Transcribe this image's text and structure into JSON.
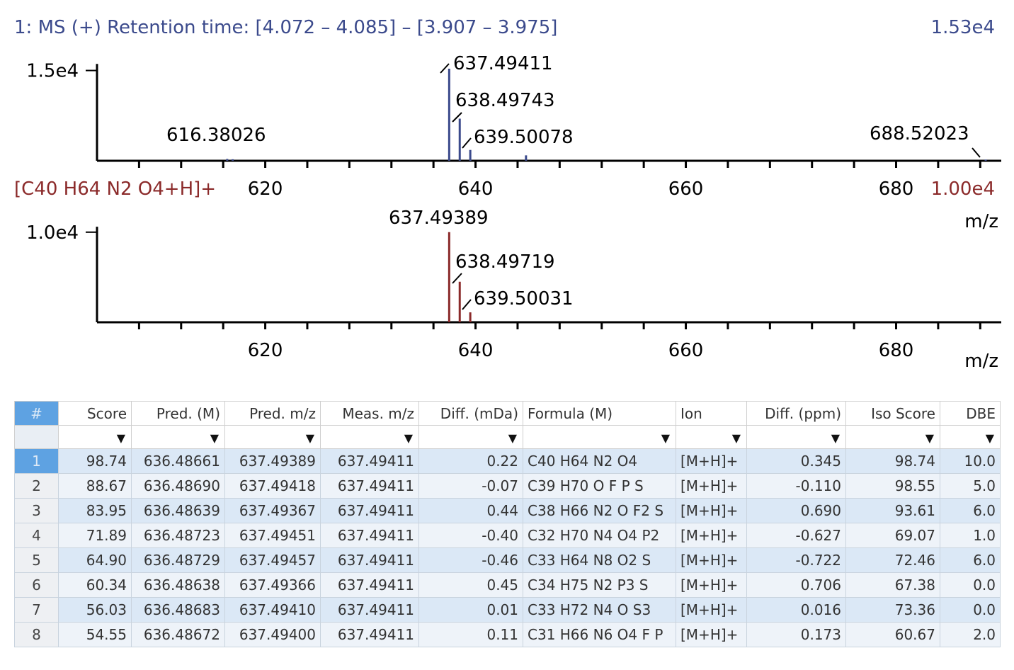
{
  "colors": {
    "measured": "#3b4a8c",
    "predicted": "#8b2a2a",
    "axis": "#000000",
    "header_accent": "#5ea2e2"
  },
  "chart_data": [
    {
      "type": "bar",
      "title": "1: MS (+) Retention time: [4.072 – 4.085] – [3.907 – 3.975]",
      "max_label": "1.53e4",
      "xlabel": "m/z",
      "xlim": [
        604,
        690
      ],
      "ylim": [
        0,
        17300
      ],
      "yticks": [
        {
          "value": 15000,
          "label": "1.5e4"
        }
      ],
      "xticks": [
        620,
        640,
        660,
        680
      ],
      "peaks": [
        {
          "x": 616.38026,
          "y": 300,
          "label": "616.38026"
        },
        {
          "x": 616.9,
          "y": 250
        },
        {
          "x": 637.49411,
          "y": 15300,
          "label": "637.49411"
        },
        {
          "x": 638.49743,
          "y": 7000,
          "label": "638.49743"
        },
        {
          "x": 639.50078,
          "y": 1800,
          "label": "639.50078"
        },
        {
          "x": 644.8,
          "y": 900
        },
        {
          "x": 688.52023,
          "y": 200,
          "label": "688.52023"
        }
      ]
    },
    {
      "type": "bar",
      "title": "[C40 H64 N2 O4+H]+",
      "max_label": "1.00e4",
      "xlabel": "m/z",
      "xlim": [
        604,
        690
      ],
      "ylim": [
        0,
        11400
      ],
      "yticks": [
        {
          "value": 10000,
          "label": "1.0e4"
        }
      ],
      "xticks": [
        620,
        640,
        660,
        680
      ],
      "peaks": [
        {
          "x": 637.49389,
          "y": 10000,
          "label": "637.49389"
        },
        {
          "x": 638.49719,
          "y": 4500,
          "label": "638.49719"
        },
        {
          "x": 639.50031,
          "y": 1100,
          "label": "639.50031"
        }
      ]
    }
  ],
  "table": {
    "headers": [
      "#",
      "Score",
      "Pred. (M)",
      "Pred. m/z",
      "Meas. m/z",
      "Diff. (mDa)",
      "Formula (M)",
      "Ion",
      "Diff. (ppm)",
      "Iso Score",
      "DBE"
    ],
    "filter_icon": "funnel-icon",
    "rows": [
      {
        "idx": "1",
        "score": "98.74",
        "pred_m": "636.48661",
        "pred_mz": "637.49389",
        "meas_mz": "637.49411",
        "diff_mda": "0.22",
        "formula": "C40 H64 N2 O4",
        "ion": "[M+H]+",
        "diff_ppm": "0.345",
        "iso": "98.74",
        "dbe": "10.0"
      },
      {
        "idx": "2",
        "score": "88.67",
        "pred_m": "636.48690",
        "pred_mz": "637.49418",
        "meas_mz": "637.49411",
        "diff_mda": "-0.07",
        "formula": "C39 H70 O F P S",
        "ion": "[M+H]+",
        "diff_ppm": "-0.110",
        "iso": "98.55",
        "dbe": "5.0"
      },
      {
        "idx": "3",
        "score": "83.95",
        "pred_m": "636.48639",
        "pred_mz": "637.49367",
        "meas_mz": "637.49411",
        "diff_mda": "0.44",
        "formula": "C38 H66 N2 O F2 S",
        "ion": "[M+H]+",
        "diff_ppm": "0.690",
        "iso": "93.61",
        "dbe": "6.0"
      },
      {
        "idx": "4",
        "score": "71.89",
        "pred_m": "636.48723",
        "pred_mz": "637.49451",
        "meas_mz": "637.49411",
        "diff_mda": "-0.40",
        "formula": "C32 H70 N4 O4 P2",
        "ion": "[M+H]+",
        "diff_ppm": "-0.627",
        "iso": "69.07",
        "dbe": "1.0"
      },
      {
        "idx": "5",
        "score": "64.90",
        "pred_m": "636.48729",
        "pred_mz": "637.49457",
        "meas_mz": "637.49411",
        "diff_mda": "-0.46",
        "formula": "C33 H64 N8 O2 S",
        "ion": "[M+H]+",
        "diff_ppm": "-0.722",
        "iso": "72.46",
        "dbe": "6.0"
      },
      {
        "idx": "6",
        "score": "60.34",
        "pred_m": "636.48638",
        "pred_mz": "637.49366",
        "meas_mz": "637.49411",
        "diff_mda": "0.45",
        "formula": "C34 H75 N2 P3 S",
        "ion": "[M+H]+",
        "diff_ppm": "0.706",
        "iso": "67.38",
        "dbe": "0.0"
      },
      {
        "idx": "7",
        "score": "56.03",
        "pred_m": "636.48683",
        "pred_mz": "637.49410",
        "meas_mz": "637.49411",
        "diff_mda": "0.01",
        "formula": "C33 H72 N4 O S3",
        "ion": "[M+H]+",
        "diff_ppm": "0.016",
        "iso": "73.36",
        "dbe": "0.0"
      },
      {
        "idx": "8",
        "score": "54.55",
        "pred_m": "636.48672",
        "pred_mz": "637.49400",
        "meas_mz": "637.49411",
        "diff_mda": "0.11",
        "formula": "C31 H66 N6 O4 F P",
        "ion": "[M+H]+",
        "diff_ppm": "0.173",
        "iso": "60.67",
        "dbe": "2.0"
      }
    ]
  }
}
